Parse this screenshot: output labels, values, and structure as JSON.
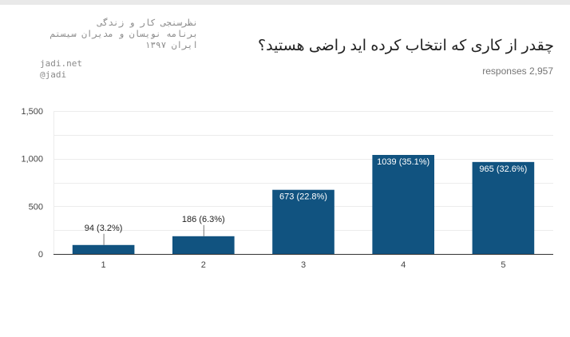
{
  "watermark": {
    "lines_rtl": [
      "نظرسنجی کار و زندگی",
      "برنامه نویسان و مدیران سیستم",
      "ایران ۱۳۹۷"
    ],
    "lines_ltr": [
      "jadi.net",
      "@jadi"
    ]
  },
  "question": {
    "title": "چقدر از کاری که انتخاب کرده اید راضی هستید؟",
    "responses": "responses 2,957"
  },
  "colors": {
    "bar": "#115380",
    "grid": "#ececec",
    "axis": "#333333",
    "tick_text": "#444444",
    "label_inside": "#ffffff",
    "label_outside": "#222222"
  },
  "chart_data": {
    "type": "bar",
    "categories": [
      "1",
      "2",
      "3",
      "4",
      "5"
    ],
    "values": [
      94,
      186,
      673,
      1039,
      965
    ],
    "data_labels": [
      "94 (3.2%)",
      "186 (6.3%)",
      "673 (22.8%)",
      "1039 (35.1%)",
      "965 (32.6%)"
    ],
    "ylim": [
      0,
      1500
    ],
    "yticks": [
      0,
      500,
      1000,
      1500
    ],
    "ytick_labels": [
      "0",
      "500",
      "1,000",
      "1,500"
    ],
    "grid": true,
    "legend": "none"
  }
}
